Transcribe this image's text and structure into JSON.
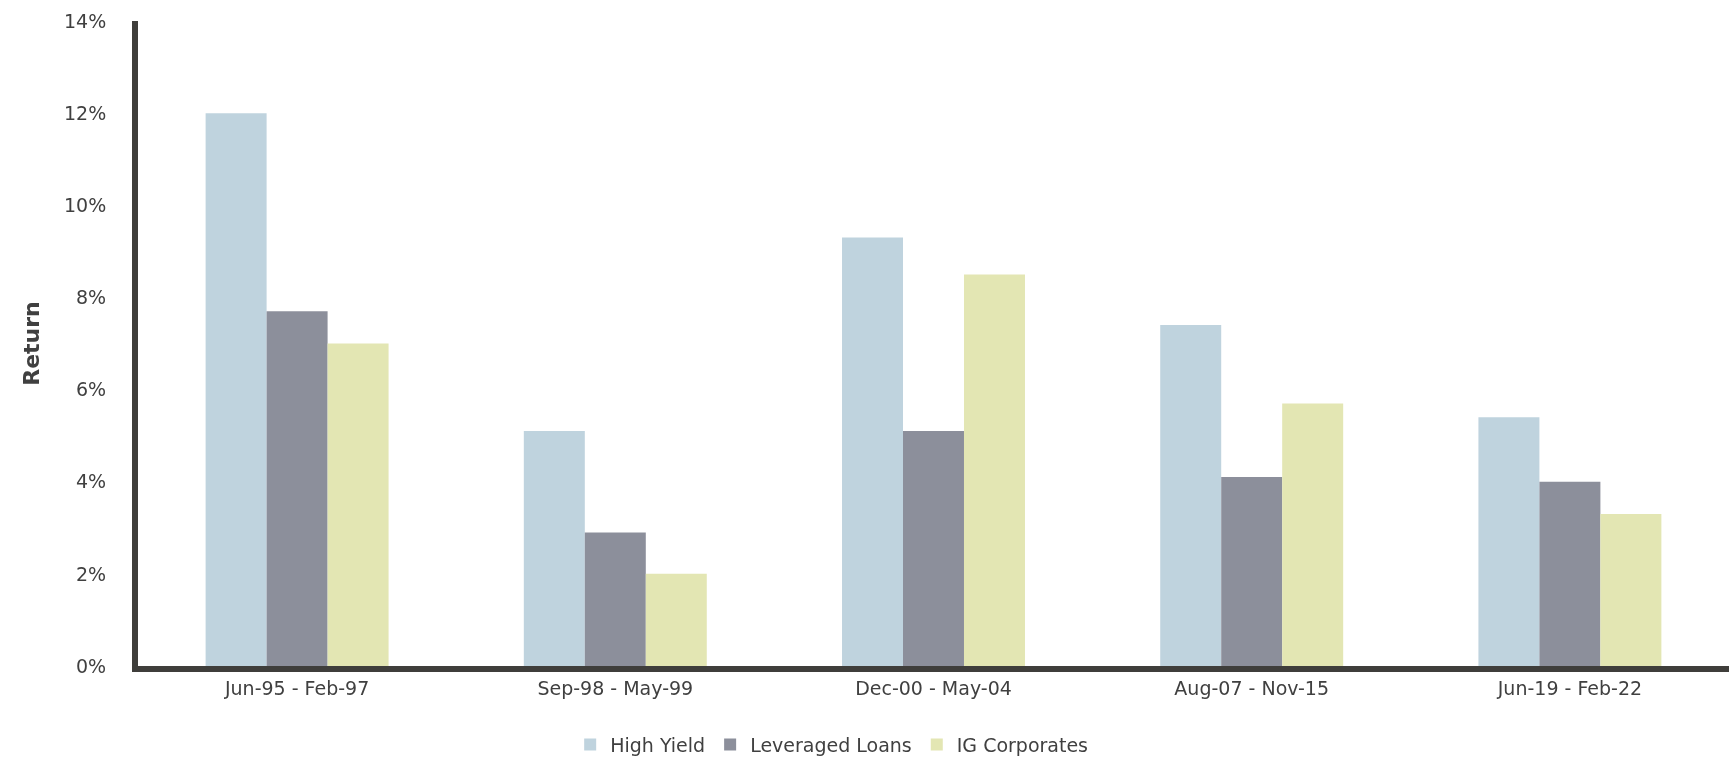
{
  "chart_data": {
    "type": "bar",
    "ylabel": "Return",
    "categories": [
      "Jun-95 - Feb-97",
      "Sep-98 - May-99",
      "Dec-00 - May-04",
      "Aug-07 - Nov-15",
      "Jun-19 - Feb-22"
    ],
    "series": [
      {
        "name": "High Yield",
        "color": "#bfd3de",
        "values": [
          12.0,
          5.1,
          9.3,
          7.4,
          5.4
        ]
      },
      {
        "name": "Leveraged Loans",
        "color": "#8c8f9b",
        "values": [
          7.7,
          2.9,
          5.1,
          4.1,
          4.0
        ]
      },
      {
        "name": "IG Corporates",
        "color": "#e3e6b3",
        "values": [
          7.0,
          2.0,
          8.5,
          5.7,
          3.3
        ]
      }
    ],
    "ylim": [
      0,
      14
    ],
    "yticks": [
      {
        "value": 0,
        "label": "0%"
      },
      {
        "value": 2,
        "label": "2%"
      },
      {
        "value": 4,
        "label": "4%"
      },
      {
        "value": 6,
        "label": "6%"
      },
      {
        "value": 8,
        "label": "8%"
      },
      {
        "value": 10,
        "label": "10%"
      },
      {
        "value": 12,
        "label": "12%"
      },
      {
        "value": 14,
        "label": "14%"
      }
    ],
    "grid": false,
    "legend": "bottom"
  }
}
